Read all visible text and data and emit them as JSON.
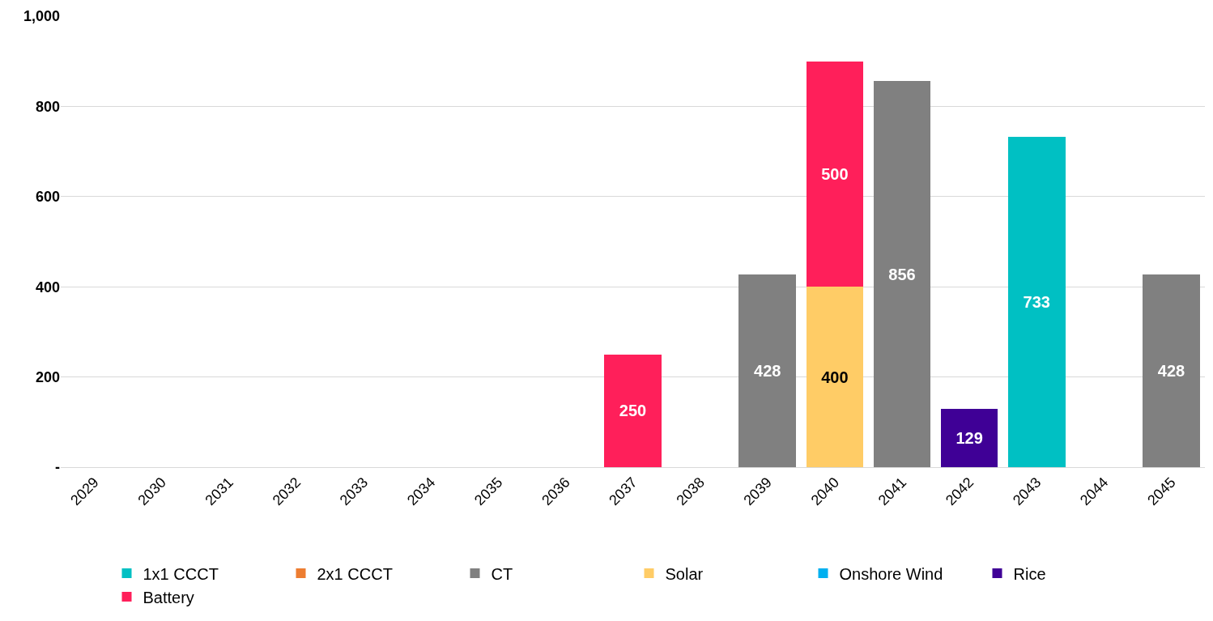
{
  "chart_data": {
    "type": "bar",
    "stacked": true,
    "data_labels": true,
    "grid": "y",
    "legend": "bottom",
    "categories": [
      "2029",
      "2030",
      "2031",
      "2032",
      "2033",
      "2034",
      "2035",
      "2036",
      "2037",
      "2038",
      "2039",
      "2040",
      "2041",
      "2042",
      "2043",
      "2044",
      "2045"
    ],
    "ylim": [
      0,
      1000
    ],
    "yticks": [
      {
        "value": 0,
        "label": "-"
      },
      200,
      400,
      600,
      800,
      {
        "value": 1000,
        "label": "1,000"
      }
    ],
    "series": [
      {
        "name": "1x1 CCCT",
        "color": "#00c0c3",
        "values": [
          null,
          null,
          null,
          null,
          null,
          null,
          null,
          null,
          null,
          null,
          null,
          null,
          null,
          null,
          733,
          null,
          null
        ]
      },
      {
        "name": "2x1 CCCT",
        "color": "#ed7d31",
        "values": [
          null,
          null,
          null,
          null,
          null,
          null,
          null,
          null,
          null,
          null,
          null,
          null,
          null,
          null,
          null,
          null,
          null
        ]
      },
      {
        "name": "CT",
        "color": "#808080",
        "values": [
          null,
          null,
          null,
          null,
          null,
          null,
          null,
          null,
          null,
          null,
          428,
          null,
          856,
          null,
          null,
          null,
          428
        ]
      },
      {
        "name": "Solar",
        "color": "#ffcc66",
        "values": [
          null,
          null,
          null,
          null,
          null,
          null,
          null,
          null,
          null,
          null,
          null,
          400,
          null,
          null,
          null,
          null,
          null
        ]
      },
      {
        "name": "Onshore Wind",
        "color": "#00b0f0",
        "values": [
          null,
          null,
          null,
          null,
          null,
          null,
          null,
          null,
          null,
          null,
          null,
          null,
          null,
          null,
          null,
          null,
          null
        ]
      },
      {
        "name": "Rice",
        "color": "#3f0096",
        "values": [
          null,
          null,
          null,
          null,
          null,
          null,
          null,
          null,
          null,
          null,
          null,
          null,
          null,
          129,
          null,
          null,
          null
        ]
      },
      {
        "name": "Battery",
        "color": "#ff1f5a",
        "values": [
          null,
          null,
          null,
          null,
          null,
          null,
          null,
          null,
          250,
          null,
          null,
          500,
          null,
          null,
          null,
          null,
          null
        ]
      }
    ]
  }
}
